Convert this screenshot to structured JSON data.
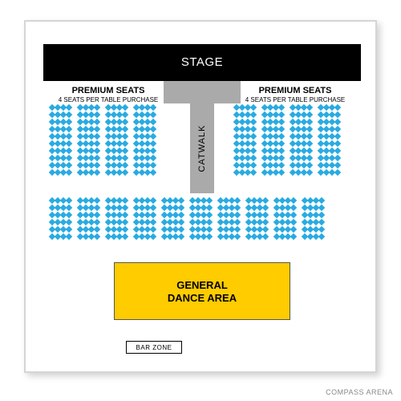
{
  "venue": {
    "name": "COMPASS ARENA"
  },
  "stage": {
    "label": "STAGE",
    "bg_color": "#000000",
    "text_color": "#ffffff"
  },
  "catwalk": {
    "label": "CATWALK",
    "bg_color": "#aaaaaa"
  },
  "premium": {
    "title": "PREMIUM SEATS",
    "subtitle": "4 SEATS PER TABLE PURCHASE"
  },
  "seating": {
    "seat_color": "#29abe2",
    "upper_rows": 10,
    "upper_groups": 4,
    "seats_per_group": 4,
    "lower_rows": 6,
    "lower_groups": 10,
    "lower_seats_per_group": 4
  },
  "general": {
    "line1": "GENERAL",
    "line2": "DANCE AREA",
    "bg_color": "#ffcc00"
  },
  "barzone": {
    "label": "BAR ZONE"
  },
  "colors": {
    "frame_border": "#d5d5d5",
    "background": "#ffffff",
    "shadow": "rgba(0,0,0,0.18)"
  }
}
